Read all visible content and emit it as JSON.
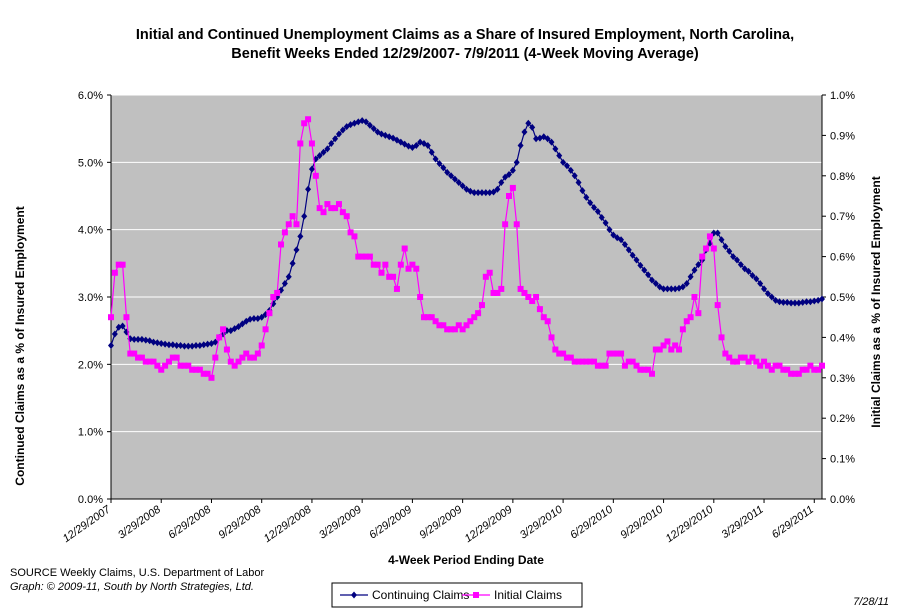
{
  "chart_data": {
    "type": "line",
    "title": "Initial and Continued Unemployment Claims as a Share of Insured Employment, North Carolina, Benefit Weeks Ended 12/29/2007- 7/9/2011 (4-Week Moving Average)",
    "x_label": "4-Week Period Ending Date",
    "y_label": "Continued Claims as a % of Insured Employment",
    "y2_label": "Initial Claims as a % of Insured Employment",
    "source": "SOURCE  Weekly Claims, U.S. Department of Labor",
    "credit": "Graph: © 2009-11, South by North Strategies, Ltd.",
    "date_note": "7/28/11",
    "categories": [
      "12/29/2007",
      null,
      null,
      null,
      null,
      null,
      null,
      null,
      null,
      null,
      null,
      null,
      null,
      "3/29/2008",
      null,
      null,
      null,
      null,
      null,
      null,
      null,
      null,
      null,
      null,
      null,
      null,
      "6/29/2008",
      null,
      null,
      null,
      null,
      null,
      null,
      null,
      null,
      null,
      null,
      null,
      null,
      "9/29/2008",
      null,
      null,
      null,
      null,
      null,
      null,
      null,
      null,
      null,
      null,
      null,
      null,
      "12/29/2008",
      null,
      null,
      null,
      null,
      null,
      null,
      null,
      null,
      null,
      null,
      null,
      null,
      "3/29/2009",
      null,
      null,
      null,
      null,
      null,
      null,
      null,
      null,
      null,
      null,
      null,
      null,
      "6/29/2009",
      null,
      null,
      null,
      null,
      null,
      null,
      null,
      null,
      null,
      null,
      null,
      null,
      "9/29/2009",
      null,
      null,
      null,
      null,
      null,
      null,
      null,
      null,
      null,
      null,
      null,
      null,
      "12/29/2009",
      null,
      null,
      null,
      null,
      null,
      null,
      null,
      null,
      null,
      null,
      null,
      null,
      "3/29/2010",
      null,
      null,
      null,
      null,
      null,
      null,
      null,
      null,
      null,
      null,
      null,
      null,
      "6/29/2010",
      null,
      null,
      null,
      null,
      null,
      null,
      null,
      null,
      null,
      null,
      null,
      null,
      "9/29/2010",
      null,
      null,
      null,
      null,
      null,
      null,
      null,
      null,
      null,
      null,
      null,
      null,
      "12/29/2010",
      null,
      null,
      null,
      null,
      null,
      null,
      null,
      null,
      null,
      null,
      null,
      null,
      "3/29/2011",
      null,
      null,
      null,
      null,
      null,
      null,
      null,
      null,
      null,
      null,
      null,
      null,
      "6/29/2011",
      null,
      null
    ],
    "series": [
      {
        "name": "Continuing Claims",
        "color": "#000080",
        "marker": "diamond",
        "axis": "y",
        "values": [
          2.28,
          2.45,
          2.55,
          2.57,
          2.48,
          2.38,
          2.37,
          2.37,
          2.37,
          2.36,
          2.35,
          2.33,
          2.32,
          2.31,
          2.3,
          2.29,
          2.29,
          2.28,
          2.28,
          2.27,
          2.27,
          2.27,
          2.28,
          2.28,
          2.29,
          2.3,
          2.31,
          2.33,
          2.4,
          2.45,
          2.5,
          2.5,
          2.53,
          2.56,
          2.6,
          2.64,
          2.67,
          2.68,
          2.68,
          2.7,
          2.74,
          2.8,
          2.9,
          3.0,
          3.1,
          3.2,
          3.3,
          3.5,
          3.7,
          3.9,
          4.2,
          4.6,
          4.9,
          5.05,
          5.1,
          5.15,
          5.2,
          5.28,
          5.35,
          5.42,
          5.48,
          5.53,
          5.56,
          5.58,
          5.6,
          5.62,
          5.6,
          5.55,
          5.5,
          5.45,
          5.42,
          5.4,
          5.38,
          5.36,
          5.33,
          5.3,
          5.27,
          5.24,
          5.22,
          5.25,
          5.3,
          5.28,
          5.25,
          5.15,
          5.05,
          4.98,
          4.92,
          4.85,
          4.8,
          4.75,
          4.7,
          4.65,
          4.6,
          4.57,
          4.55,
          4.55,
          4.55,
          4.55,
          4.55,
          4.56,
          4.6,
          4.7,
          4.78,
          4.82,
          4.88,
          5.0,
          5.25,
          5.45,
          5.58,
          5.52,
          5.35,
          5.36,
          5.38,
          5.35,
          5.3,
          5.2,
          5.1,
          5.0,
          4.95,
          4.88,
          4.8,
          4.7,
          4.58,
          4.48,
          4.4,
          4.33,
          4.27,
          4.18,
          4.1,
          4.0,
          3.92,
          3.88,
          3.85,
          3.78,
          3.7,
          3.62,
          3.55,
          3.47,
          3.4,
          3.33,
          3.25,
          3.2,
          3.15,
          3.12,
          3.12,
          3.12,
          3.12,
          3.13,
          3.15,
          3.2,
          3.3,
          3.4,
          3.48,
          3.55,
          3.7,
          3.8,
          3.95,
          3.95,
          3.85,
          3.75,
          3.68,
          3.6,
          3.55,
          3.48,
          3.42,
          3.38,
          3.32,
          3.27,
          3.2,
          3.12,
          3.05,
          3.0,
          2.95,
          2.93,
          2.92,
          2.92,
          2.91,
          2.91,
          2.91,
          2.92,
          2.93,
          2.93,
          2.94,
          2.95,
          2.97
        ]
      },
      {
        "name": "Initial Claims",
        "color": "#ff00ff",
        "marker": "square",
        "axis": "y2",
        "values": [
          0.45,
          0.56,
          0.58,
          0.58,
          0.45,
          0.36,
          0.36,
          0.35,
          0.35,
          0.34,
          0.34,
          0.34,
          0.33,
          0.32,
          0.33,
          0.34,
          0.35,
          0.35,
          0.33,
          0.33,
          0.33,
          0.32,
          0.32,
          0.32,
          0.31,
          0.31,
          0.3,
          0.35,
          0.4,
          0.42,
          0.37,
          0.34,
          0.33,
          0.34,
          0.35,
          0.36,
          0.35,
          0.35,
          0.36,
          0.38,
          0.42,
          0.46,
          0.5,
          0.51,
          0.63,
          0.66,
          0.68,
          0.7,
          0.68,
          0.88,
          0.93,
          0.94,
          0.88,
          0.8,
          0.72,
          0.71,
          0.73,
          0.72,
          0.72,
          0.73,
          0.71,
          0.7,
          0.66,
          0.65,
          0.6,
          0.6,
          0.6,
          0.6,
          0.58,
          0.58,
          0.56,
          0.58,
          0.55,
          0.55,
          0.52,
          0.58,
          0.62,
          0.57,
          0.58,
          0.57,
          0.5,
          0.45,
          0.45,
          0.45,
          0.44,
          0.43,
          0.43,
          0.42,
          0.42,
          0.42,
          0.43,
          0.42,
          0.43,
          0.44,
          0.45,
          0.46,
          0.48,
          0.55,
          0.56,
          0.51,
          0.51,
          0.52,
          0.68,
          0.75,
          0.77,
          0.68,
          0.52,
          0.51,
          0.5,
          0.49,
          0.5,
          0.47,
          0.45,
          0.44,
          0.4,
          0.37,
          0.36,
          0.36,
          0.35,
          0.35,
          0.34,
          0.34,
          0.34,
          0.34,
          0.34,
          0.34,
          0.33,
          0.33,
          0.33,
          0.36,
          0.36,
          0.36,
          0.36,
          0.33,
          0.34,
          0.34,
          0.33,
          0.32,
          0.32,
          0.32,
          0.31,
          0.37,
          0.37,
          0.38,
          0.39,
          0.37,
          0.38,
          0.37,
          0.42,
          0.44,
          0.45,
          0.5,
          0.46,
          0.6,
          0.62,
          0.65,
          0.62,
          0.48,
          0.4,
          0.36,
          0.35,
          0.34,
          0.34,
          0.35,
          0.35,
          0.34,
          0.35,
          0.34,
          0.33,
          0.34,
          0.33,
          0.32,
          0.33,
          0.33,
          0.32,
          0.32,
          0.31,
          0.31,
          0.31,
          0.32,
          0.32,
          0.33,
          0.32,
          0.32,
          0.33
        ]
      }
    ],
    "ylim": [
      0,
      6
    ],
    "yticks": [
      {
        "value": 0,
        "label": "0.0%"
      },
      {
        "value": 1,
        "label": "1.0%"
      },
      {
        "value": 2,
        "label": "2.0%"
      },
      {
        "value": 3,
        "label": "3.0%"
      },
      {
        "value": 4,
        "label": "4.0%"
      },
      {
        "value": 5,
        "label": "5.0%"
      },
      {
        "value": 6,
        "label": "6.0%"
      }
    ],
    "y2lim": [
      0,
      1
    ],
    "y2ticks": [
      {
        "value": 0,
        "label": "0.0%"
      },
      {
        "value": 0.1,
        "label": "0.1%"
      },
      {
        "value": 0.2,
        "label": "0.2%"
      },
      {
        "value": 0.3,
        "label": "0.3%"
      },
      {
        "value": 0.4,
        "label": "0.4%"
      },
      {
        "value": 0.5,
        "label": "0.5%"
      },
      {
        "value": 0.6,
        "label": "0.6%"
      },
      {
        "value": 0.7,
        "label": "0.7%"
      },
      {
        "value": 0.8,
        "label": "0.8%"
      },
      {
        "value": 0.9,
        "label": "0.9%"
      },
      {
        "value": 1,
        "label": "1.0%"
      }
    ],
    "grid": true,
    "plot_background": "#c0c0c0",
    "legend": "bottom"
  }
}
